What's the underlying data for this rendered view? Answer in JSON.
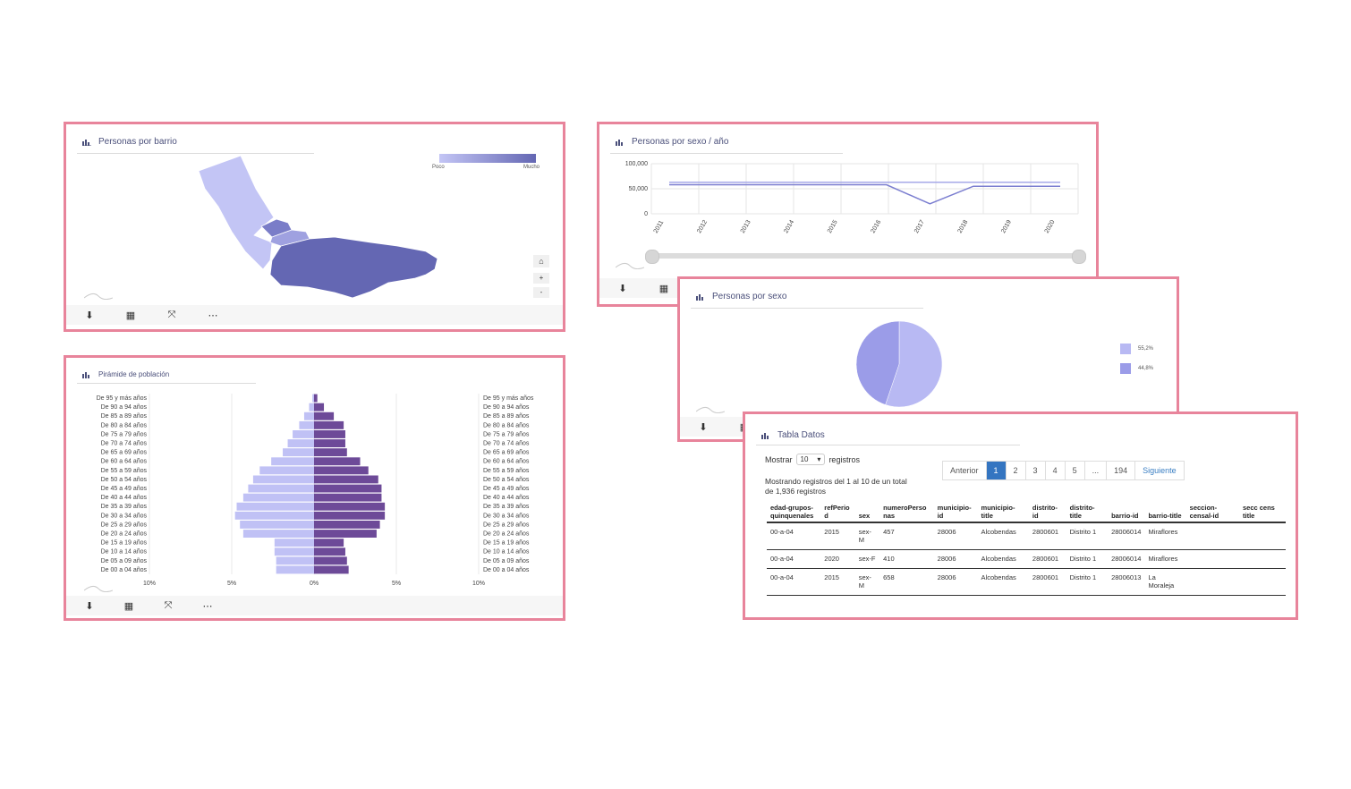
{
  "barrio": {
    "title": "Personas por barrio",
    "legend_low": "Poco",
    "legend_high": "Mucho",
    "gradient_from": "#c3c5f5",
    "gradient_to": "#6467b3",
    "toolbar": {
      "download": "download-icon",
      "table": "table-icon",
      "expand": "expand-icon",
      "more": "more-icon"
    }
  },
  "sexo_anio": {
    "title": "Personas por sexo / año",
    "chart_data": {
      "type": "line",
      "x": [
        "2011",
        "2012",
        "2013",
        "2014",
        "2015",
        "2016",
        "2017",
        "2018",
        "2019",
        "2020"
      ],
      "y_ticks": [
        "100,000",
        "50,000",
        "0"
      ],
      "ylim": [
        0,
        100000
      ],
      "series": [
        {
          "color": "#a6a8e8",
          "values": [
            63000,
            63000,
            63000,
            63000,
            63000,
            63000,
            63000,
            63000,
            63000,
            63000
          ]
        },
        {
          "color": "#7b7ed0",
          "values": [
            58000,
            58000,
            58000,
            58000,
            58000,
            58000,
            20000,
            55000,
            55000,
            55000
          ]
        }
      ]
    }
  },
  "sexo": {
    "title": "Personas por sexo",
    "chart_data": {
      "type": "pie",
      "slices": [
        {
          "label": "55,2%",
          "value": 55.2,
          "color": "#b8b9f3"
        },
        {
          "label": "44,8%",
          "value": 44.8,
          "color": "#9b9ce8"
        }
      ]
    }
  },
  "piramide": {
    "title": "Pirámide de población",
    "chart_data": {
      "type": "bar",
      "categories": [
        "De 95 y más años",
        "De 90 a 94 años",
        "De 85 a 89 años",
        "De 80 a 84 años",
        "De 75 a 79 años",
        "De 70 a 74 años",
        "De 65 a 69 años",
        "De 60 a 64 años",
        "De 55 a 59 años",
        "De 50 a 54 años",
        "De 45 a 49 años",
        "De 40 a 44 años",
        "De 35 a 39 años",
        "De 30 a 34 años",
        "De 25 a 29 años",
        "De 20 a 24 años",
        "De 15 a 19 años",
        "De 10 a 14 años",
        "De 05 a 09 años",
        "De 00 a 04 años"
      ],
      "x_ticks": [
        "10%",
        "5%",
        "0%",
        "5%",
        "10%"
      ],
      "series": [
        {
          "color": "#c0c1f5",
          "values": [
            0.1,
            0.3,
            0.6,
            0.9,
            1.3,
            1.6,
            1.9,
            2.6,
            3.3,
            3.7,
            4.0,
            4.3,
            4.7,
            4.8,
            4.5,
            4.3,
            2.4,
            2.4,
            2.3,
            2.3
          ]
        },
        {
          "color": "#6d4a98",
          "values": [
            0.2,
            0.6,
            1.2,
            1.8,
            1.9,
            1.9,
            2.0,
            2.8,
            3.3,
            3.9,
            4.1,
            4.1,
            4.3,
            4.3,
            4.0,
            3.8,
            1.8,
            1.9,
            2.0,
            2.1
          ]
        }
      ]
    }
  },
  "tabla": {
    "title": "Tabla Datos",
    "show_label": "Mostrar",
    "page_size": "10",
    "records_label": "registros",
    "info": "Mostrando registros del 1 al 10 de un total de 1,936 registros",
    "pagination": [
      "Anterior",
      "1",
      "2",
      "3",
      "4",
      "5",
      "...",
      "194",
      "Siguiente"
    ],
    "columns": [
      "edad-grupos-quinquenales",
      "refPeriod",
      "sex",
      "numeroPersonas",
      "municipio-id",
      "municipio-title",
      "distrito-id",
      "distrito-title",
      "barrio-id",
      "barrio-title",
      "seccion-censal-id",
      "secc cens title"
    ],
    "rows": [
      [
        "00-a-04",
        "2015",
        "sex-M",
        "457",
        "28006",
        "Alcobendas",
        "2800601",
        "Distrito 1",
        "28006014",
        "Miraflores",
        "",
        ""
      ],
      [
        "00-a-04",
        "2020",
        "sex-F",
        "410",
        "28006",
        "Alcobendas",
        "2800601",
        "Distrito 1",
        "28006014",
        "Miraflores",
        "",
        ""
      ],
      [
        "00-a-04",
        "2015",
        "sex-M",
        "658",
        "28006",
        "Alcobendas",
        "2800601",
        "Distrito 1",
        "28006013",
        "La Moraleja",
        "",
        ""
      ]
    ]
  }
}
